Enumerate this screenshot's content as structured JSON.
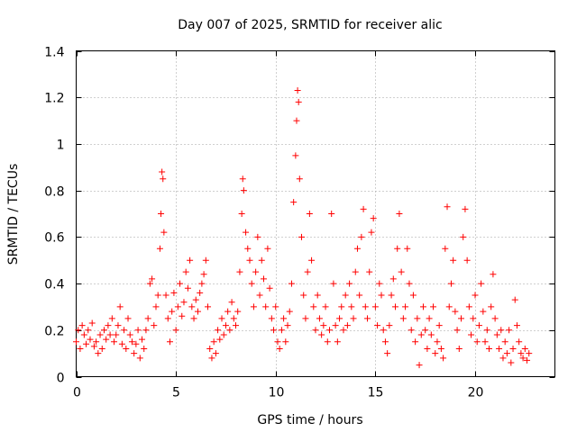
{
  "chart_data": {
    "type": "scatter",
    "title": "Day 007 of 2025, SRMTID for receiver alic",
    "xlabel": "GPS time / hours",
    "ylabel": "SRMTID / TECUs",
    "xlim": [
      0,
      24
    ],
    "ylim": [
      0,
      1.4
    ],
    "xticks": [
      0,
      5,
      10,
      15,
      20
    ],
    "xtick_labels": [
      "0",
      "5",
      "10",
      "15",
      "20"
    ],
    "yticks": [
      0,
      0.2,
      0.4,
      0.6,
      0.8,
      1.0,
      1.2,
      1.4
    ],
    "ytick_labels": [
      "0",
      "0.2",
      "0.4",
      "0.6",
      "0.8",
      "1",
      "1.2",
      "1.4"
    ],
    "grid": true,
    "marker": "+",
    "series": [
      {
        "name": "SRMTID",
        "color": "#ff0000",
        "points": [
          [
            0.0,
            0.15
          ],
          [
            0.1,
            0.2
          ],
          [
            0.2,
            0.12
          ],
          [
            0.3,
            0.22
          ],
          [
            0.4,
            0.18
          ],
          [
            0.5,
            0.14
          ],
          [
            0.6,
            0.2
          ],
          [
            0.7,
            0.16
          ],
          [
            0.8,
            0.23
          ],
          [
            0.9,
            0.13
          ],
          [
            1.0,
            0.15
          ],
          [
            1.1,
            0.1
          ],
          [
            1.2,
            0.18
          ],
          [
            1.3,
            0.12
          ],
          [
            1.4,
            0.2
          ],
          [
            1.5,
            0.16
          ],
          [
            1.6,
            0.22
          ],
          [
            1.7,
            0.18
          ],
          [
            1.8,
            0.25
          ],
          [
            1.9,
            0.15
          ],
          [
            2.0,
            0.18
          ],
          [
            2.1,
            0.22
          ],
          [
            2.2,
            0.3
          ],
          [
            2.3,
            0.14
          ],
          [
            2.4,
            0.2
          ],
          [
            2.5,
            0.12
          ],
          [
            2.6,
            0.25
          ],
          [
            2.7,
            0.18
          ],
          [
            2.8,
            0.15
          ],
          [
            2.9,
            0.1
          ],
          [
            3.0,
            0.14
          ],
          [
            3.1,
            0.2
          ],
          [
            3.2,
            0.08
          ],
          [
            3.3,
            0.16
          ],
          [
            3.4,
            0.12
          ],
          [
            3.5,
            0.2
          ],
          [
            3.6,
            0.25
          ],
          [
            3.7,
            0.4
          ],
          [
            3.8,
            0.42
          ],
          [
            3.9,
            0.22
          ],
          [
            4.0,
            0.3
          ],
          [
            4.1,
            0.35
          ],
          [
            4.2,
            0.55
          ],
          [
            4.25,
            0.7
          ],
          [
            4.3,
            0.88
          ],
          [
            4.35,
            0.85
          ],
          [
            4.4,
            0.62
          ],
          [
            4.5,
            0.35
          ],
          [
            4.6,
            0.25
          ],
          [
            4.7,
            0.15
          ],
          [
            4.8,
            0.28
          ],
          [
            4.9,
            0.36
          ],
          [
            5.0,
            0.2
          ],
          [
            5.1,
            0.3
          ],
          [
            5.2,
            0.4
          ],
          [
            5.3,
            0.26
          ],
          [
            5.4,
            0.32
          ],
          [
            5.5,
            0.45
          ],
          [
            5.6,
            0.38
          ],
          [
            5.7,
            0.5
          ],
          [
            5.8,
            0.3
          ],
          [
            5.9,
            0.25
          ],
          [
            6.0,
            0.33
          ],
          [
            6.1,
            0.28
          ],
          [
            6.2,
            0.36
          ],
          [
            6.3,
            0.4
          ],
          [
            6.4,
            0.44
          ],
          [
            6.5,
            0.5
          ],
          [
            6.6,
            0.3
          ],
          [
            6.7,
            0.12
          ],
          [
            6.8,
            0.08
          ],
          [
            6.9,
            0.15
          ],
          [
            7.0,
            0.1
          ],
          [
            7.1,
            0.2
          ],
          [
            7.2,
            0.16
          ],
          [
            7.3,
            0.25
          ],
          [
            7.4,
            0.18
          ],
          [
            7.5,
            0.22
          ],
          [
            7.6,
            0.28
          ],
          [
            7.7,
            0.2
          ],
          [
            7.8,
            0.32
          ],
          [
            7.9,
            0.25
          ],
          [
            8.0,
            0.22
          ],
          [
            8.1,
            0.28
          ],
          [
            8.2,
            0.45
          ],
          [
            8.3,
            0.7
          ],
          [
            8.35,
            0.85
          ],
          [
            8.4,
            0.8
          ],
          [
            8.5,
            0.62
          ],
          [
            8.6,
            0.55
          ],
          [
            8.7,
            0.5
          ],
          [
            8.8,
            0.4
          ],
          [
            8.9,
            0.3
          ],
          [
            9.0,
            0.45
          ],
          [
            9.1,
            0.6
          ],
          [
            9.2,
            0.35
          ],
          [
            9.3,
            0.5
          ],
          [
            9.4,
            0.42
          ],
          [
            9.5,
            0.3
          ],
          [
            9.6,
            0.55
          ],
          [
            9.7,
            0.38
          ],
          [
            9.8,
            0.25
          ],
          [
            9.9,
            0.2
          ],
          [
            10.0,
            0.3
          ],
          [
            10.1,
            0.15
          ],
          [
            10.2,
            0.12
          ],
          [
            10.3,
            0.2
          ],
          [
            10.4,
            0.25
          ],
          [
            10.5,
            0.15
          ],
          [
            10.6,
            0.22
          ],
          [
            10.7,
            0.28
          ],
          [
            10.8,
            0.4
          ],
          [
            10.9,
            0.75
          ],
          [
            11.0,
            0.95
          ],
          [
            11.05,
            1.1
          ],
          [
            11.1,
            1.23
          ],
          [
            11.15,
            1.18
          ],
          [
            11.2,
            0.85
          ],
          [
            11.3,
            0.6
          ],
          [
            11.4,
            0.35
          ],
          [
            11.5,
            0.25
          ],
          [
            11.6,
            0.45
          ],
          [
            11.7,
            0.7
          ],
          [
            11.8,
            0.5
          ],
          [
            11.9,
            0.3
          ],
          [
            12.0,
            0.2
          ],
          [
            12.1,
            0.35
          ],
          [
            12.2,
            0.25
          ],
          [
            12.3,
            0.18
          ],
          [
            12.4,
            0.22
          ],
          [
            12.5,
            0.3
          ],
          [
            12.6,
            0.15
          ],
          [
            12.7,
            0.2
          ],
          [
            12.8,
            0.7
          ],
          [
            12.9,
            0.4
          ],
          [
            13.0,
            0.22
          ],
          [
            13.1,
            0.15
          ],
          [
            13.2,
            0.25
          ],
          [
            13.3,
            0.3
          ],
          [
            13.4,
            0.2
          ],
          [
            13.5,
            0.35
          ],
          [
            13.6,
            0.22
          ],
          [
            13.7,
            0.4
          ],
          [
            13.8,
            0.3
          ],
          [
            13.9,
            0.25
          ],
          [
            14.0,
            0.45
          ],
          [
            14.1,
            0.55
          ],
          [
            14.2,
            0.35
          ],
          [
            14.3,
            0.6
          ],
          [
            14.4,
            0.72
          ],
          [
            14.5,
            0.3
          ],
          [
            14.6,
            0.25
          ],
          [
            14.7,
            0.45
          ],
          [
            14.8,
            0.62
          ],
          [
            14.9,
            0.68
          ],
          [
            15.0,
            0.3
          ],
          [
            15.1,
            0.22
          ],
          [
            15.2,
            0.4
          ],
          [
            15.3,
            0.35
          ],
          [
            15.4,
            0.2
          ],
          [
            15.5,
            0.15
          ],
          [
            15.6,
            0.1
          ],
          [
            15.7,
            0.22
          ],
          [
            15.8,
            0.35
          ],
          [
            15.9,
            0.42
          ],
          [
            16.0,
            0.3
          ],
          [
            16.1,
            0.55
          ],
          [
            16.2,
            0.7
          ],
          [
            16.3,
            0.45
          ],
          [
            16.4,
            0.25
          ],
          [
            16.5,
            0.3
          ],
          [
            16.6,
            0.55
          ],
          [
            16.7,
            0.4
          ],
          [
            16.8,
            0.2
          ],
          [
            16.9,
            0.35
          ],
          [
            17.0,
            0.15
          ],
          [
            17.1,
            0.25
          ],
          [
            17.2,
            0.05
          ],
          [
            17.3,
            0.18
          ],
          [
            17.4,
            0.3
          ],
          [
            17.5,
            0.2
          ],
          [
            17.6,
            0.12
          ],
          [
            17.7,
            0.25
          ],
          [
            17.8,
            0.18
          ],
          [
            17.9,
            0.3
          ],
          [
            18.0,
            0.1
          ],
          [
            18.1,
            0.15
          ],
          [
            18.2,
            0.22
          ],
          [
            18.3,
            0.12
          ],
          [
            18.4,
            0.08
          ],
          [
            18.5,
            0.55
          ],
          [
            18.6,
            0.73
          ],
          [
            18.7,
            0.3
          ],
          [
            18.8,
            0.4
          ],
          [
            18.9,
            0.5
          ],
          [
            19.0,
            0.28
          ],
          [
            19.1,
            0.2
          ],
          [
            19.2,
            0.12
          ],
          [
            19.3,
            0.25
          ],
          [
            19.4,
            0.6
          ],
          [
            19.5,
            0.72
          ],
          [
            19.6,
            0.5
          ],
          [
            19.7,
            0.3
          ],
          [
            19.8,
            0.18
          ],
          [
            19.9,
            0.25
          ],
          [
            20.0,
            0.35
          ],
          [
            20.1,
            0.15
          ],
          [
            20.2,
            0.22
          ],
          [
            20.3,
            0.4
          ],
          [
            20.4,
            0.28
          ],
          [
            20.5,
            0.15
          ],
          [
            20.6,
            0.2
          ],
          [
            20.7,
            0.12
          ],
          [
            20.8,
            0.3
          ],
          [
            20.9,
            0.44
          ],
          [
            21.0,
            0.25
          ],
          [
            21.1,
            0.18
          ],
          [
            21.2,
            0.12
          ],
          [
            21.3,
            0.2
          ],
          [
            21.4,
            0.08
          ],
          [
            21.5,
            0.15
          ],
          [
            21.6,
            0.1
          ],
          [
            21.7,
            0.2
          ],
          [
            21.8,
            0.06
          ],
          [
            21.9,
            0.12
          ],
          [
            22.0,
            0.33
          ],
          [
            22.1,
            0.22
          ],
          [
            22.2,
            0.15
          ],
          [
            22.3,
            0.1
          ],
          [
            22.4,
            0.08
          ],
          [
            22.5,
            0.12
          ],
          [
            22.6,
            0.07
          ],
          [
            22.7,
            0.1
          ]
        ]
      }
    ]
  }
}
